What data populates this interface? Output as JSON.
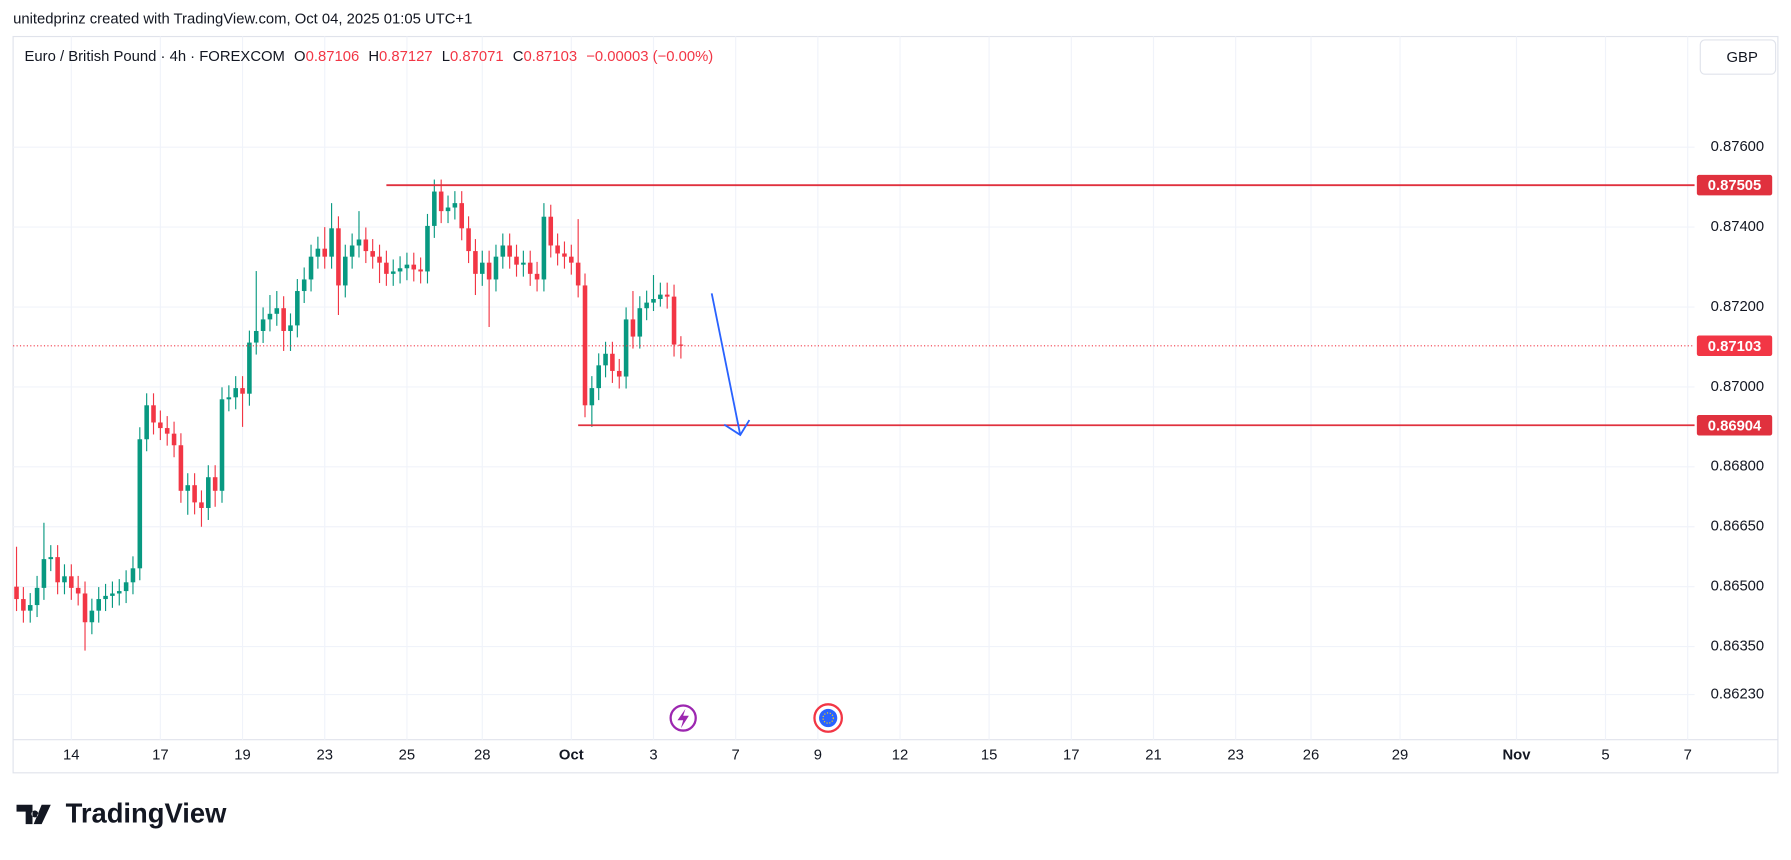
{
  "header": {
    "credit": "unitedprinz created with TradingView.com, Oct 04, 2025 01:05 UTC+1",
    "currency": "GBP",
    "logo": "TradingView"
  },
  "chart_data": {
    "type": "candlestick",
    "title": "Euro / British Pound · 4h · FOREXCOM",
    "ohlc_labels": [
      "O",
      "H",
      "L",
      "C"
    ],
    "change": "−0.00003 (−0.00%)",
    "up_color": "#089981",
    "down_color": "#f23645",
    "grid": true,
    "xlim": [
      0,
      245
    ],
    "xticks": [
      {
        "value": 8,
        "label": "14"
      },
      {
        "value": 21,
        "label": "17"
      },
      {
        "value": 33,
        "label": "19"
      },
      {
        "value": 45,
        "label": "23"
      },
      {
        "value": 57,
        "label": "25"
      },
      {
        "value": 68,
        "label": "28"
      },
      {
        "value": 81,
        "label": "Oct"
      },
      {
        "value": 93,
        "label": "3"
      },
      {
        "value": 105,
        "label": "7"
      },
      {
        "value": 117,
        "label": "9"
      },
      {
        "value": 129,
        "label": "12"
      },
      {
        "value": 142,
        "label": "15"
      },
      {
        "value": 154,
        "label": "17"
      },
      {
        "value": 166,
        "label": "21"
      },
      {
        "value": 178,
        "label": "23"
      },
      {
        "value": 189,
        "label": "26"
      },
      {
        "value": 202,
        "label": "29"
      },
      {
        "value": 219,
        "label": "Nov"
      },
      {
        "value": 232,
        "label": "5"
      },
      {
        "value": 244,
        "label": "7"
      }
    ],
    "ylim": [
      0.86117,
      0.87877
    ],
    "yticks": [
      {
        "value": 0.876,
        "label": "0.87600"
      },
      {
        "value": 0.874,
        "label": "0.87400"
      },
      {
        "value": 0.872,
        "label": "0.87200"
      },
      {
        "value": 0.87,
        "label": "0.87000"
      },
      {
        "value": 0.868,
        "label": "0.86800"
      },
      {
        "value": 0.8665,
        "label": "0.86650"
      },
      {
        "value": 0.865,
        "label": "0.86500"
      },
      {
        "value": 0.8635,
        "label": "0.86350"
      },
      {
        "value": 0.8623,
        "label": "0.86230"
      }
    ],
    "levels": [
      {
        "value": 0.87505,
        "start": 54,
        "color": "#e0313e"
      },
      {
        "value": 0.86904,
        "start": 82,
        "color": "#e0313e"
      }
    ],
    "open": [
      0.865,
      0.86469,
      0.8644,
      0.86454,
      0.86497,
      0.86569,
      0.86574,
      0.86511,
      0.86526,
      0.86497,
      0.86483,
      0.86411,
      0.8644,
      0.86469,
      0.86477,
      0.86483,
      0.86489,
      0.86511,
      0.86546,
      0.86869,
      0.86954,
      0.86911,
      0.86897,
      0.86883,
      0.86854,
      0.8674,
      0.86754,
      0.86711,
      0.86697,
      0.86774,
      0.8674,
      0.86969,
      0.86974,
      0.86997,
      0.86983,
      0.87111,
      0.8714,
      0.87169,
      0.87183,
      0.87197,
      0.8714,
      0.87154,
      0.8724,
      0.87269,
      0.87326,
      0.87346,
      0.87326,
      0.87397,
      0.87254,
      0.87326,
      0.87354,
      0.87369,
      0.8734,
      0.87326,
      0.87311,
      0.87283,
      0.87289,
      0.87297,
      0.87306,
      0.87294,
      0.87289,
      0.87403,
      0.87489,
      0.8744,
      0.87449,
      0.8746,
      0.87397,
      0.8734,
      0.87283,
      0.87311,
      0.87269,
      0.87326,
      0.87354,
      0.87326,
      0.87306,
      0.87311,
      0.87283,
      0.87269,
      0.87426,
      0.87354,
      0.87334,
      0.87326,
      0.87311,
      0.87254,
      0.86954,
      0.86997,
      0.87054,
      0.87083,
      0.8704,
      0.87026,
      0.87169,
      0.87126,
      0.87197,
      0.87211,
      0.8722,
      0.87231,
      0.87226,
      0.87106
    ],
    "high": [
      0.866,
      0.86499,
      0.86484,
      0.86527,
      0.8666,
      0.86604,
      0.86604,
      0.86556,
      0.86556,
      0.86527,
      0.86513,
      0.8647,
      0.86499,
      0.86507,
      0.86513,
      0.86519,
      0.86541,
      0.86576,
      0.86899,
      0.86984,
      0.86984,
      0.86941,
      0.86927,
      0.86913,
      0.86884,
      0.86784,
      0.86784,
      0.86741,
      0.86804,
      0.86804,
      0.86999,
      0.87004,
      0.87027,
      0.87027,
      0.87141,
      0.8729,
      0.87199,
      0.8723,
      0.8724,
      0.87227,
      0.87184,
      0.8727,
      0.87299,
      0.87356,
      0.87376,
      0.874,
      0.8746,
      0.87427,
      0.87356,
      0.87384,
      0.8744,
      0.87399,
      0.8737,
      0.87356,
      0.87341,
      0.87319,
      0.87327,
      0.87336,
      0.87336,
      0.87324,
      0.87433,
      0.87519,
      0.87519,
      0.87479,
      0.8749,
      0.8749,
      0.87427,
      0.8737,
      0.87341,
      0.87341,
      0.87356,
      0.87384,
      0.87384,
      0.87356,
      0.87341,
      0.87341,
      0.87313,
      0.8746,
      0.87456,
      0.87384,
      0.87364,
      0.87356,
      0.8742,
      0.87284,
      0.87027,
      0.87084,
      0.87113,
      0.87113,
      0.8707,
      0.87199,
      0.8724,
      0.87227,
      0.87241,
      0.8728,
      0.87261,
      0.87261,
      0.87256,
      0.87127
    ],
    "low": [
      0.86439,
      0.8641,
      0.8641,
      0.86424,
      0.86467,
      0.86539,
      0.86481,
      0.86481,
      0.86467,
      0.86453,
      0.8634,
      0.86381,
      0.8641,
      0.86439,
      0.86447,
      0.86453,
      0.86459,
      0.86481,
      0.86516,
      0.86839,
      0.86881,
      0.86867,
      0.86853,
      0.86824,
      0.8671,
      0.8668,
      0.86681,
      0.8665,
      0.86667,
      0.867,
      0.8671,
      0.86939,
      0.86944,
      0.869,
      0.86953,
      0.87081,
      0.8711,
      0.87139,
      0.87153,
      0.8709,
      0.8709,
      0.87124,
      0.8721,
      0.87239,
      0.87296,
      0.87296,
      0.87296,
      0.8718,
      0.87224,
      0.87296,
      0.87324,
      0.8731,
      0.87296,
      0.8726,
      0.87253,
      0.87253,
      0.87259,
      0.87267,
      0.87264,
      0.87259,
      0.87259,
      0.87373,
      0.8741,
      0.8741,
      0.87419,
      0.87367,
      0.8731,
      0.8723,
      0.87253,
      0.8715,
      0.87239,
      0.87296,
      0.87296,
      0.87276,
      0.87276,
      0.87253,
      0.87239,
      0.87239,
      0.87324,
      0.87304,
      0.87296,
      0.87281,
      0.87224,
      0.86924,
      0.869,
      0.86967,
      0.87024,
      0.8701,
      0.86996,
      0.86996,
      0.87096,
      0.87096,
      0.87167,
      0.8719,
      0.87201,
      0.87196,
      0.87076,
      0.87071
    ],
    "close": [
      0.86469,
      0.8644,
      0.86454,
      0.86497,
      0.86569,
      0.86574,
      0.86511,
      0.86526,
      0.86497,
      0.86483,
      0.86411,
      0.8644,
      0.86469,
      0.86477,
      0.86483,
      0.86489,
      0.86511,
      0.86546,
      0.86869,
      0.86954,
      0.86911,
      0.86897,
      0.86883,
      0.86854,
      0.8674,
      0.86754,
      0.86711,
      0.86697,
      0.86774,
      0.8674,
      0.86969,
      0.86974,
      0.86997,
      0.86983,
      0.87111,
      0.8714,
      0.87169,
      0.87183,
      0.87197,
      0.8714,
      0.87154,
      0.8724,
      0.87269,
      0.87326,
      0.87346,
      0.87326,
      0.87397,
      0.87254,
      0.87326,
      0.87354,
      0.87369,
      0.8734,
      0.87326,
      0.87311,
      0.87283,
      0.87289,
      0.87297,
      0.87306,
      0.87294,
      0.87289,
      0.87403,
      0.87489,
      0.8744,
      0.87449,
      0.8746,
      0.87397,
      0.8734,
      0.87283,
      0.87311,
      0.87269,
      0.87326,
      0.87354,
      0.87326,
      0.87306,
      0.87311,
      0.87283,
      0.87269,
      0.87426,
      0.87354,
      0.87334,
      0.87326,
      0.87311,
      0.87254,
      0.86954,
      0.86997,
      0.87054,
      0.87083,
      0.8704,
      0.87026,
      0.87169,
      0.87126,
      0.87197,
      0.87211,
      0.8722,
      0.87231,
      0.87226,
      0.87106,
      0.87103
    ]
  }
}
